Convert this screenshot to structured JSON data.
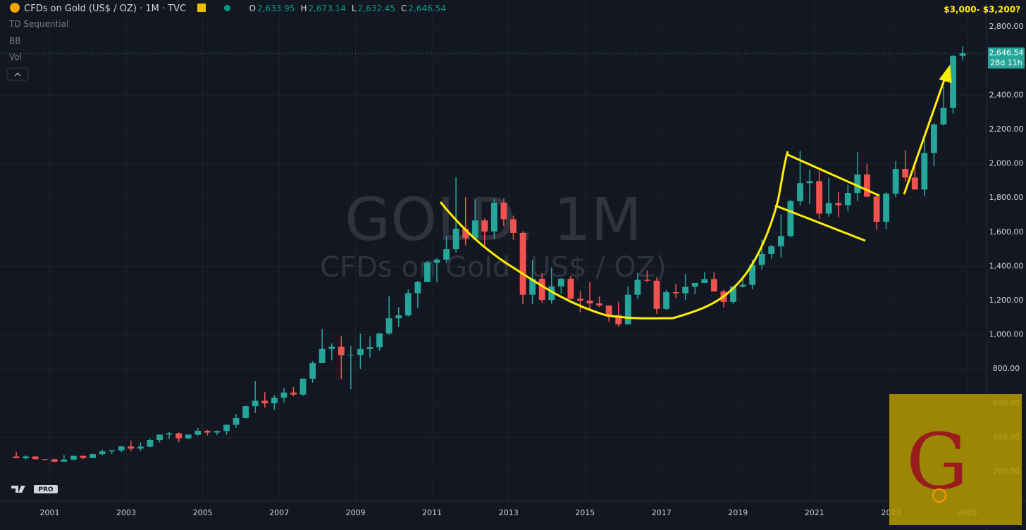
{
  "header": {
    "symbol": "CFDs on Gold (US$ / OZ) · 1M · TVC",
    "ohlc": [
      {
        "key": "O",
        "value": "2,633.95"
      },
      {
        "key": "H",
        "value": "2,673.14"
      },
      {
        "key": "L",
        "value": "2,632.45"
      },
      {
        "key": "C",
        "value": "2,646.54"
      }
    ]
  },
  "indicators": [
    "TD Sequential",
    "BB",
    "Vol"
  ],
  "watermark": {
    "title": "GOLD, 1M",
    "subtitle": "CFDs on Gold (US$ / OZ)"
  },
  "badges": {
    "pro": "PRO",
    "logo": "G"
  },
  "chart_data": {
    "type": "candlestick",
    "annotation": "$3,000- $3,200?",
    "countdown": "28d 11h",
    "last_price": {
      "value": 2646.54,
      "label": "2,646.54"
    },
    "up_color": "#26a69a",
    "down_color": "#ef5350",
    "grid": true,
    "xlim": [
      1999.7,
      2025.5
    ],
    "xticks": [
      2001,
      2003,
      2005,
      2007,
      2009,
      2011,
      2013,
      2015,
      2017,
      2019,
      2021,
      2023,
      2025
    ],
    "ylim": [
      27,
      2957
    ],
    "yticks": [
      {
        "value": 200,
        "label": "200.00"
      },
      {
        "value": 400,
        "label": "400.00"
      },
      {
        "value": 600,
        "label": "600.00"
      },
      {
        "value": 800,
        "label": "800.00"
      },
      {
        "value": 1000,
        "label": "1,000.00"
      },
      {
        "value": 1200,
        "label": "1,200.00"
      },
      {
        "value": 1400,
        "label": "1,400.00"
      },
      {
        "value": 1600,
        "label": "1,600.00"
      },
      {
        "value": 1800,
        "label": "1,800.00"
      },
      {
        "value": 2000,
        "label": "2,000.00"
      },
      {
        "value": 2200,
        "label": "2,200.00"
      },
      {
        "value": 2400,
        "label": "2,400.00"
      },
      {
        "value": 2600,
        "label": "2,600.00"
      },
      {
        "value": 2800,
        "label": "2,800.00"
      }
    ],
    "x": [
      2000.125,
      2000.375,
      2000.625,
      2000.875,
      2001.125,
      2001.375,
      2001.625,
      2001.875,
      2002.125,
      2002.375,
      2002.625,
      2002.875,
      2003.125,
      2003.375,
      2003.625,
      2003.875,
      2004.125,
      2004.375,
      2004.625,
      2004.875,
      2005.125,
      2005.375,
      2005.625,
      2005.875,
      2006.125,
      2006.375,
      2006.625,
      2006.875,
      2007.125,
      2007.375,
      2007.625,
      2007.875,
      2008.125,
      2008.375,
      2008.625,
      2008.875,
      2009.125,
      2009.375,
      2009.625,
      2009.875,
      2010.125,
      2010.375,
      2010.625,
      2010.875,
      2011.125,
      2011.375,
      2011.625,
      2011.875,
      2012.125,
      2012.375,
      2012.625,
      2012.875,
      2013.125,
      2013.375,
      2013.625,
      2013.875,
      2014.125,
      2014.375,
      2014.625,
      2014.875,
      2015.125,
      2015.375,
      2015.625,
      2015.875,
      2016.125,
      2016.375,
      2016.625,
      2016.875,
      2017.125,
      2017.375,
      2017.625,
      2017.875,
      2018.125,
      2018.375,
      2018.625,
      2018.875,
      2019.125,
      2019.375,
      2019.625,
      2019.875,
      2020.125,
      2020.375,
      2020.625,
      2020.875,
      2021.125,
      2021.375,
      2021.625,
      2021.875,
      2022.125,
      2022.375,
      2022.625,
      2022.875,
      2023.125,
      2023.375,
      2023.625,
      2023.875,
      2024.125,
      2024.375,
      2024.625,
      2024.875
    ],
    "open": [
      288,
      278,
      288,
      273,
      272,
      258,
      270,
      292,
      279,
      302,
      318,
      324,
      347,
      334,
      346,
      385,
      416,
      423,
      394,
      416,
      438,
      428,
      437,
      473,
      513,
      582,
      614,
      599,
      632,
      662,
      650,
      743,
      834,
      917,
      930,
      880,
      882,
      916,
      927,
      1008,
      1096,
      1113,
      1243,
      1308,
      1421,
      1439,
      1500,
      1620,
      1565,
      1668,
      1604,
      1772,
      1675,
      1595,
      1234,
      1327,
      1204,
      1283,
      1327,
      1210,
      1199,
      1183,
      1171,
      1115,
      1061,
      1234,
      1321,
      1316,
      1151,
      1249,
      1242,
      1280,
      1303,
      1325,
      1253,
      1192,
      1281,
      1292,
      1409,
      1472,
      1517,
      1577,
      1781,
      1886,
      1898,
      1708,
      1770,
      1757,
      1829,
      1937,
      1807,
      1660,
      1824,
      1969,
      1919,
      1849,
      2063,
      2230,
      2327,
      2630
    ],
    "high": [
      316,
      295,
      290,
      275,
      275,
      298,
      293,
      292,
      304,
      329,
      325,
      349,
      382,
      371,
      391,
      417,
      431,
      428,
      416,
      456,
      444,
      441,
      475,
      537,
      585,
      730,
      664,
      648,
      690,
      695,
      745,
      845,
      1033,
      950,
      990,
      935,
      1006,
      990,
      1011,
      1226,
      1162,
      1265,
      1315,
      1431,
      1448,
      1577,
      1921,
      1804,
      1792,
      1680,
      1796,
      1796,
      1696,
      1605,
      1434,
      1361,
      1392,
      1331,
      1345,
      1255,
      1307,
      1224,
      1170,
      1191,
      1282,
      1362,
      1375,
      1337,
      1263,
      1296,
      1357,
      1300,
      1366,
      1365,
      1265,
      1285,
      1346,
      1439,
      1557,
      1525,
      1703,
      1789,
      2075,
      1965,
      1959,
      1916,
      1834,
      1877,
      2070,
      1998,
      1814,
      1833,
      2015,
      2079,
      1987,
      2145,
      2236,
      2450,
      2634,
      2686
    ],
    "low": [
      280,
      270,
      270,
      264,
      255,
      257,
      265,
      272,
      278,
      295,
      302,
      315,
      320,
      320,
      342,
      370,
      390,
      372,
      389,
      410,
      411,
      413,
      415,
      456,
      510,
      542,
      573,
      560,
      603,
      640,
      643,
      720,
      834,
      850,
      740,
      681,
      800,
      865,
      905,
      1000,
      1045,
      1107,
      1155,
      1307,
      1308,
      1420,
      1480,
      1523,
      1563,
      1522,
      1560,
      1635,
      1555,
      1180,
      1180,
      1187,
      1182,
      1240,
      1206,
      1131,
      1142,
      1162,
      1077,
      1046,
      1061,
      1208,
      1306,
      1122,
      1146,
      1214,
      1204,
      1236,
      1307,
      1250,
      1160,
      1180,
      1276,
      1266,
      1381,
      1445,
      1451,
      1568,
      1757,
      1764,
      1677,
      1690,
      1687,
      1721,
      1780,
      1805,
      1614,
      1618,
      1804,
      1893,
      1848,
      1810,
      1984,
      2223,
      2293,
      2604
    ],
    "close": [
      278,
      288,
      273,
      272,
      258,
      270,
      292,
      279,
      302,
      318,
      324,
      347,
      334,
      346,
      385,
      416,
      423,
      394,
      416,
      438,
      428,
      437,
      473,
      513,
      582,
      614,
      599,
      632,
      662,
      650,
      743,
      834,
      917,
      930,
      880,
      882,
      916,
      927,
      1008,
      1096,
      1113,
      1243,
      1308,
      1421,
      1439,
      1500,
      1620,
      1565,
      1668,
      1604,
      1772,
      1675,
      1595,
      1234,
      1327,
      1204,
      1283,
      1327,
      1210,
      1199,
      1183,
      1171,
      1115,
      1061,
      1234,
      1321,
      1316,
      1151,
      1249,
      1242,
      1280,
      1303,
      1325,
      1253,
      1192,
      1281,
      1292,
      1409,
      1472,
      1517,
      1577,
      1781,
      1886,
      1898,
      1708,
      1770,
      1757,
      1829,
      1937,
      1807,
      1660,
      1824,
      1969,
      1919,
      1849,
      2063,
      2230,
      2327,
      2630,
      2646.54
    ]
  }
}
